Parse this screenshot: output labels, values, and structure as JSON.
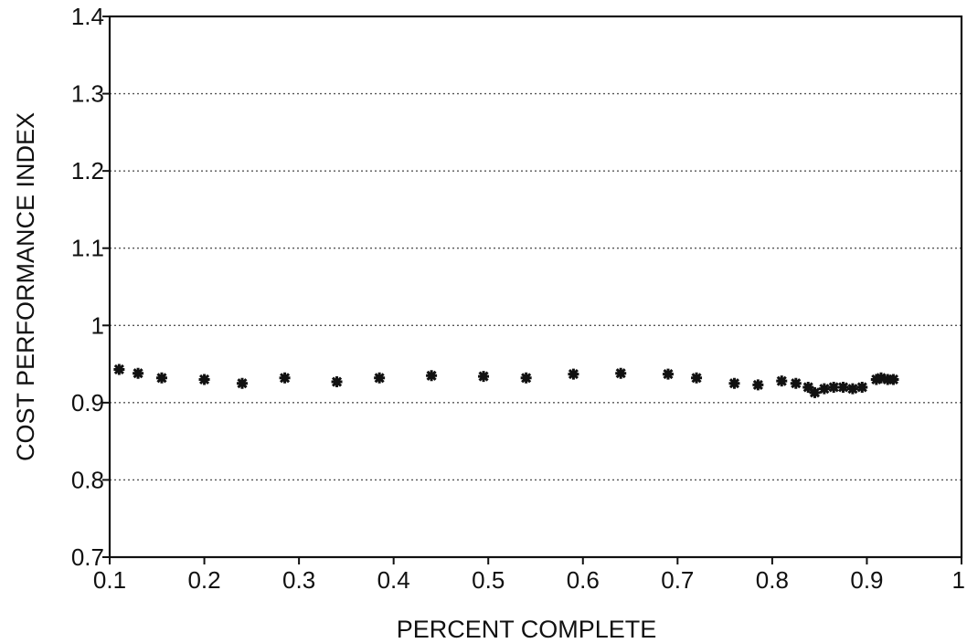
{
  "chart_data": {
    "type": "scatter",
    "title": "",
    "xlabel": "PERCENT COMPLETE",
    "ylabel": "COST PERFORMANCE INDEX",
    "xlim": [
      0.1,
      1.0
    ],
    "ylim": [
      0.7,
      1.4
    ],
    "x_ticks": [
      "0.1",
      "0.2",
      "0.3",
      "0.4",
      "0.5",
      "0.6",
      "0.7",
      "0.8",
      "0.9",
      "1"
    ],
    "y_ticks": [
      "0.7",
      "0.8",
      "0.9",
      "1",
      "1.1",
      "1.2",
      "1.3",
      "1.4"
    ],
    "grid": "horizontal dotted",
    "marker": "asterisk",
    "color": "#111111",
    "points": [
      {
        "x": 0.11,
        "y": 0.943
      },
      {
        "x": 0.13,
        "y": 0.938
      },
      {
        "x": 0.155,
        "y": 0.932
      },
      {
        "x": 0.2,
        "y": 0.93
      },
      {
        "x": 0.24,
        "y": 0.925
      },
      {
        "x": 0.285,
        "y": 0.932
      },
      {
        "x": 0.34,
        "y": 0.927
      },
      {
        "x": 0.385,
        "y": 0.932
      },
      {
        "x": 0.44,
        "y": 0.935
      },
      {
        "x": 0.495,
        "y": 0.934
      },
      {
        "x": 0.54,
        "y": 0.932
      },
      {
        "x": 0.59,
        "y": 0.937
      },
      {
        "x": 0.64,
        "y": 0.938
      },
      {
        "x": 0.69,
        "y": 0.937
      },
      {
        "x": 0.72,
        "y": 0.932
      },
      {
        "x": 0.76,
        "y": 0.925
      },
      {
        "x": 0.785,
        "y": 0.923
      },
      {
        "x": 0.81,
        "y": 0.928
      },
      {
        "x": 0.825,
        "y": 0.925
      },
      {
        "x": 0.838,
        "y": 0.92
      },
      {
        "x": 0.845,
        "y": 0.913
      },
      {
        "x": 0.855,
        "y": 0.918
      },
      {
        "x": 0.865,
        "y": 0.92
      },
      {
        "x": 0.875,
        "y": 0.92
      },
      {
        "x": 0.885,
        "y": 0.918
      },
      {
        "x": 0.895,
        "y": 0.92
      },
      {
        "x": 0.91,
        "y": 0.93
      },
      {
        "x": 0.915,
        "y": 0.932
      },
      {
        "x": 0.922,
        "y": 0.93
      },
      {
        "x": 0.928,
        "y": 0.93
      }
    ]
  }
}
